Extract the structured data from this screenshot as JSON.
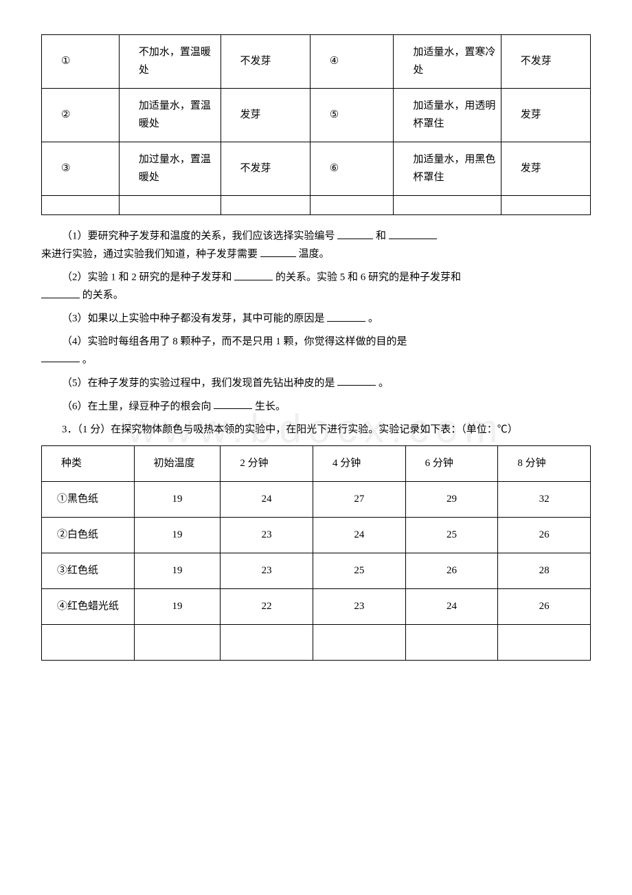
{
  "watermark": "www.bdocx.com",
  "table1": {
    "rows": [
      [
        "①",
        "不加水，置温暖处",
        "不发芽",
        "④",
        "加适量水，置寒冷处",
        "不发芽"
      ],
      [
        "②",
        "加适量水，置温暖处",
        "发芽",
        "⑤",
        "加适量水，用透明杯罩住",
        "发芽"
      ],
      [
        "③",
        "加过量水，置温暖处",
        "不发芽",
        "⑥",
        "加适量水，用黑色杯罩住",
        "发芽"
      ]
    ]
  },
  "questions": {
    "q1_a": "（1）要研究种子发芽和温度的关系，我们应该选择实验编号",
    "q1_b": "和",
    "q1_c": "来进行实验，通过实验我们知道，种子发芽需要",
    "q1_d": "温度。",
    "q2_a": "（2）实验 1 和 2 研究的是种子发芽和",
    "q2_b": "的关系。实验 5 和 6 研究的是种子发芽和",
    "q2_c": "的关系。",
    "q3_a": "（3）如果以上实验中种子都没有发芽，其中可能的原因是",
    "q3_b": "。",
    "q4_a": "（4）实验时每组各用了 8 颗种子，而不是只用 1 颗，你觉得这样做的目的是",
    "q4_b": "。",
    "q5_a": "（5）在种子发芽的实验过程中，我们发现首先钻出种皮的是",
    "q5_b": "。",
    "q6_a": "（6）在土里，绿豆种子的根会向",
    "q6_b": "生长。"
  },
  "intro3": "3．（1 分）在探究物体颜色与吸热本领的实验中，在阳光下进行实验。实验记录如下表：（单位：℃）",
  "table2": {
    "header": [
      "种类",
      "初始温度",
      "2 分钟",
      "4 分钟",
      "6 分钟",
      "8 分钟"
    ],
    "rows": [
      [
        "①黑色纸",
        "19",
        "24",
        "27",
        "29",
        "32"
      ],
      [
        "②白色纸",
        "19",
        "23",
        "24",
        "25",
        "26"
      ],
      [
        "③红色纸",
        "19",
        "23",
        "25",
        "26",
        "28"
      ],
      [
        "④红色蜡光纸",
        "19",
        "22",
        "23",
        "24",
        "26"
      ]
    ]
  }
}
